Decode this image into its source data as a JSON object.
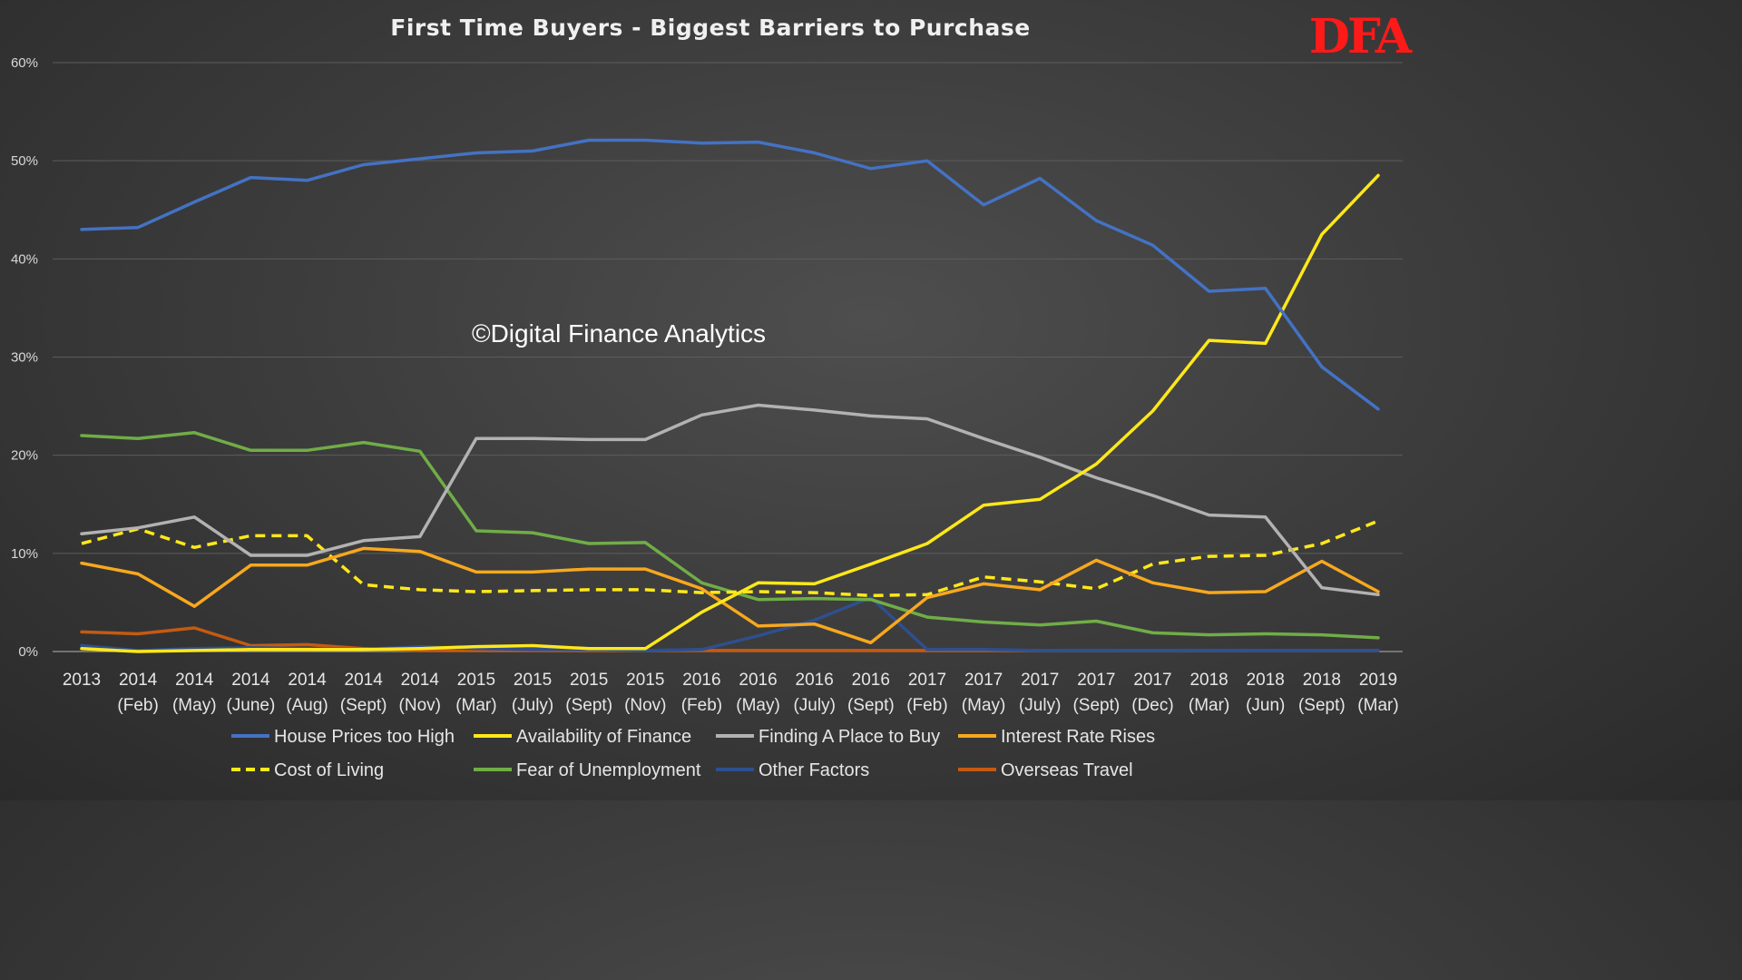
{
  "chart_data": {
    "type": "line",
    "title": "First Time Buyers -  Biggest Barriers to Purchase",
    "watermark": "©Digital Finance Analytics",
    "logo": "DFA",
    "xlabel": "",
    "ylabel": "",
    "ylim": [
      0,
      60
    ],
    "yticks": [
      0,
      10,
      20,
      30,
      40,
      50,
      60
    ],
    "ytick_labels": [
      "0%",
      "10%",
      "20%",
      "30%",
      "40%",
      "50%",
      "60%"
    ],
    "grid": true,
    "legend_position": "bottom",
    "categories": [
      [
        "2013",
        ""
      ],
      [
        "2014",
        "(Feb)"
      ],
      [
        "2014",
        "(May)"
      ],
      [
        "2014",
        "(June)"
      ],
      [
        "2014",
        "(Aug)"
      ],
      [
        "2014",
        "(Sept)"
      ],
      [
        "2014",
        "(Nov)"
      ],
      [
        "2015",
        "(Mar)"
      ],
      [
        "2015",
        "(July)"
      ],
      [
        "2015",
        "(Sept)"
      ],
      [
        "2015",
        "(Nov)"
      ],
      [
        "2016",
        "(Feb)"
      ],
      [
        "2016",
        "(May)"
      ],
      [
        "2016",
        "(July)"
      ],
      [
        "2016",
        "(Sept)"
      ],
      [
        "2017",
        "(Feb)"
      ],
      [
        "2017",
        "(May)"
      ],
      [
        "2017",
        "(July)"
      ],
      [
        "2017",
        "(Sept)"
      ],
      [
        "2017",
        "(Dec)"
      ],
      [
        "2018",
        "(Mar)"
      ],
      [
        "2018",
        "(Jun)"
      ],
      [
        "2018",
        "(Sept)"
      ],
      [
        "2019",
        "(Mar)"
      ]
    ],
    "series": [
      {
        "name": "House Prices too High",
        "color": "#4472c4",
        "dashed": false,
        "values": [
          43.0,
          43.2,
          45.8,
          48.3,
          48.0,
          49.6,
          50.2,
          50.8,
          51.0,
          52.1,
          52.1,
          51.8,
          51.9,
          50.8,
          49.2,
          50.0,
          45.5,
          48.2,
          43.9,
          41.4,
          36.7,
          37.0,
          29.0,
          24.7
        ]
      },
      {
        "name": "Availability of Finance",
        "color": "#ffe819",
        "dashed": false,
        "values": [
          0.3,
          0.0,
          0.1,
          0.2,
          0.2,
          0.2,
          0.3,
          0.5,
          0.6,
          0.3,
          0.3,
          4.0,
          7.0,
          6.9,
          8.9,
          11.0,
          14.9,
          15.5,
          19.1,
          24.5,
          31.7,
          31.4,
          42.5,
          48.5
        ]
      },
      {
        "name": "Finding A Place to Buy",
        "color": "#b2b2b2",
        "dashed": false,
        "values": [
          12.0,
          12.6,
          13.7,
          9.8,
          9.8,
          11.3,
          11.7,
          21.7,
          21.7,
          21.6,
          21.6,
          24.1,
          25.1,
          24.6,
          24.0,
          23.7,
          21.7,
          19.8,
          17.7,
          15.9,
          13.9,
          13.7,
          6.5,
          5.8
        ]
      },
      {
        "name": "Interest Rate Rises",
        "color": "#f7a81e",
        "dashed": false,
        "values": [
          9.0,
          7.9,
          4.6,
          8.8,
          8.8,
          10.5,
          10.2,
          8.1,
          8.1,
          8.4,
          8.4,
          6.4,
          2.6,
          2.8,
          0.9,
          5.5,
          6.9,
          6.3,
          9.3,
          7.0,
          6.0,
          6.1,
          9.2,
          6.1
        ]
      },
      {
        "name": "Cost of Living",
        "color": "#ffe819",
        "dashed": true,
        "values": [
          11.0,
          12.5,
          10.6,
          11.8,
          11.8,
          6.8,
          6.3,
          6.1,
          6.2,
          6.3,
          6.3,
          6.0,
          6.1,
          6.0,
          5.7,
          5.8,
          7.6,
          7.1,
          6.4,
          8.9,
          9.7,
          9.8,
          11.0,
          13.3
        ]
      },
      {
        "name": "Fear of Unemployment",
        "color": "#70ad47",
        "dashed": false,
        "values": [
          22.0,
          21.7,
          22.3,
          20.5,
          20.5,
          21.3,
          20.4,
          12.3,
          12.1,
          11.0,
          11.1,
          7.0,
          5.3,
          5.4,
          5.3,
          3.5,
          3.0,
          2.7,
          3.1,
          1.9,
          1.7,
          1.8,
          1.7,
          1.4
        ]
      },
      {
        "name": "Other Factors",
        "color": "#2e4f8f",
        "dashed": false,
        "values": [
          0.6,
          0.1,
          0.3,
          0.4,
          0.3,
          0.2,
          0.5,
          0.3,
          0.2,
          0.2,
          0.1,
          0.2,
          1.6,
          3.2,
          5.5,
          0.2,
          0.2,
          0.1,
          0.1,
          0.1,
          0.1,
          0.1,
          0.1,
          0.1
        ]
      },
      {
        "name": "Overseas Travel",
        "color": "#c55a11",
        "dashed": false,
        "values": [
          2.0,
          1.8,
          2.4,
          0.6,
          0.7,
          0.3,
          0.1,
          0.1,
          0.1,
          0.1,
          0.1,
          0.1,
          0.1,
          0.1,
          0.1,
          0.1,
          0.1,
          0.1,
          0.1,
          0.1,
          0.1,
          0.1,
          0.1,
          0.1
        ]
      }
    ]
  }
}
